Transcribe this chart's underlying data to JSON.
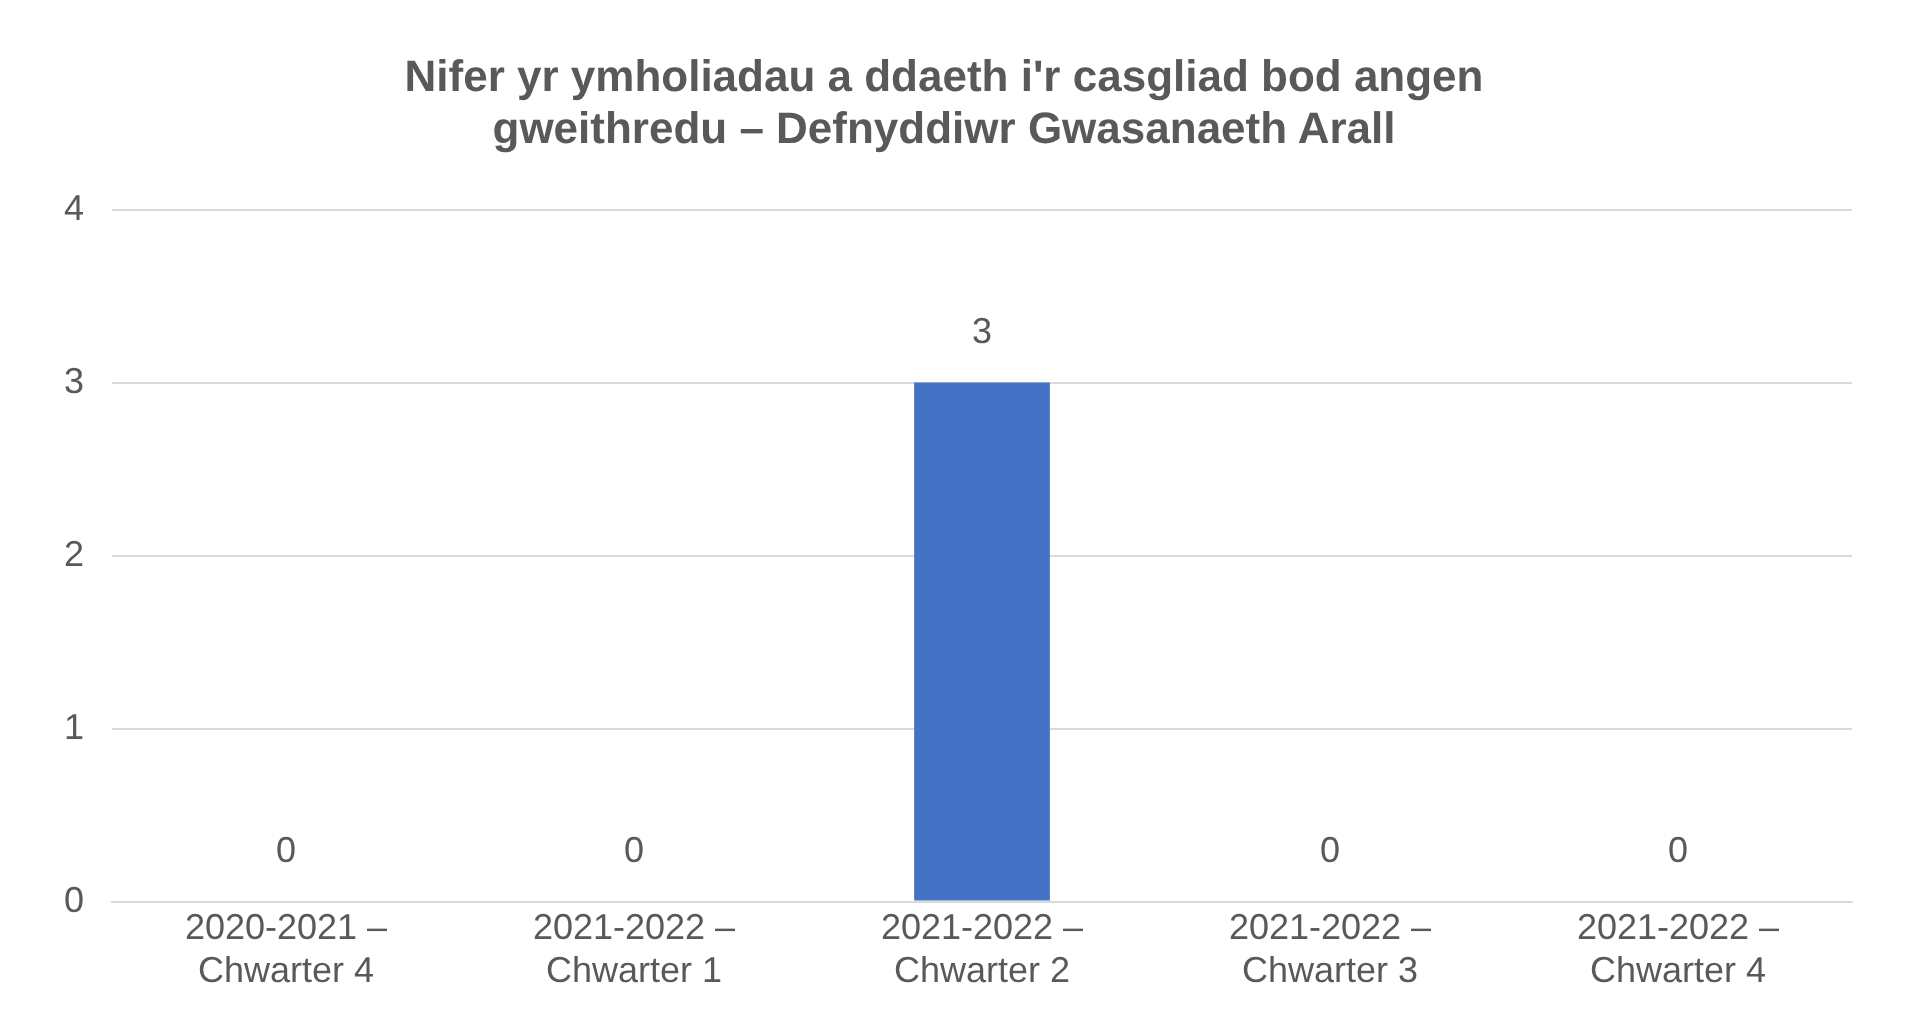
{
  "chart_data": {
    "type": "bar",
    "title": "Nifer yr ymholiadau a ddaeth i'r casgliad bod angen gweithredu – Defnyddiwr Gwasanaeth Arall",
    "categories": [
      "2020-2021 – Chwarter 4",
      "2021-2022 – Chwarter 1",
      "2021-2022 – Chwarter 2",
      "2021-2022 – Chwarter 3",
      "2021-2022 – Chwarter 4"
    ],
    "values": [
      0,
      0,
      3,
      0,
      0
    ],
    "color": "#4472c4",
    "ylim": [
      0,
      4
    ],
    "yticks": [
      0,
      1,
      2,
      3,
      4
    ],
    "grid": "y",
    "data_labels": true,
    "legend": false
  }
}
